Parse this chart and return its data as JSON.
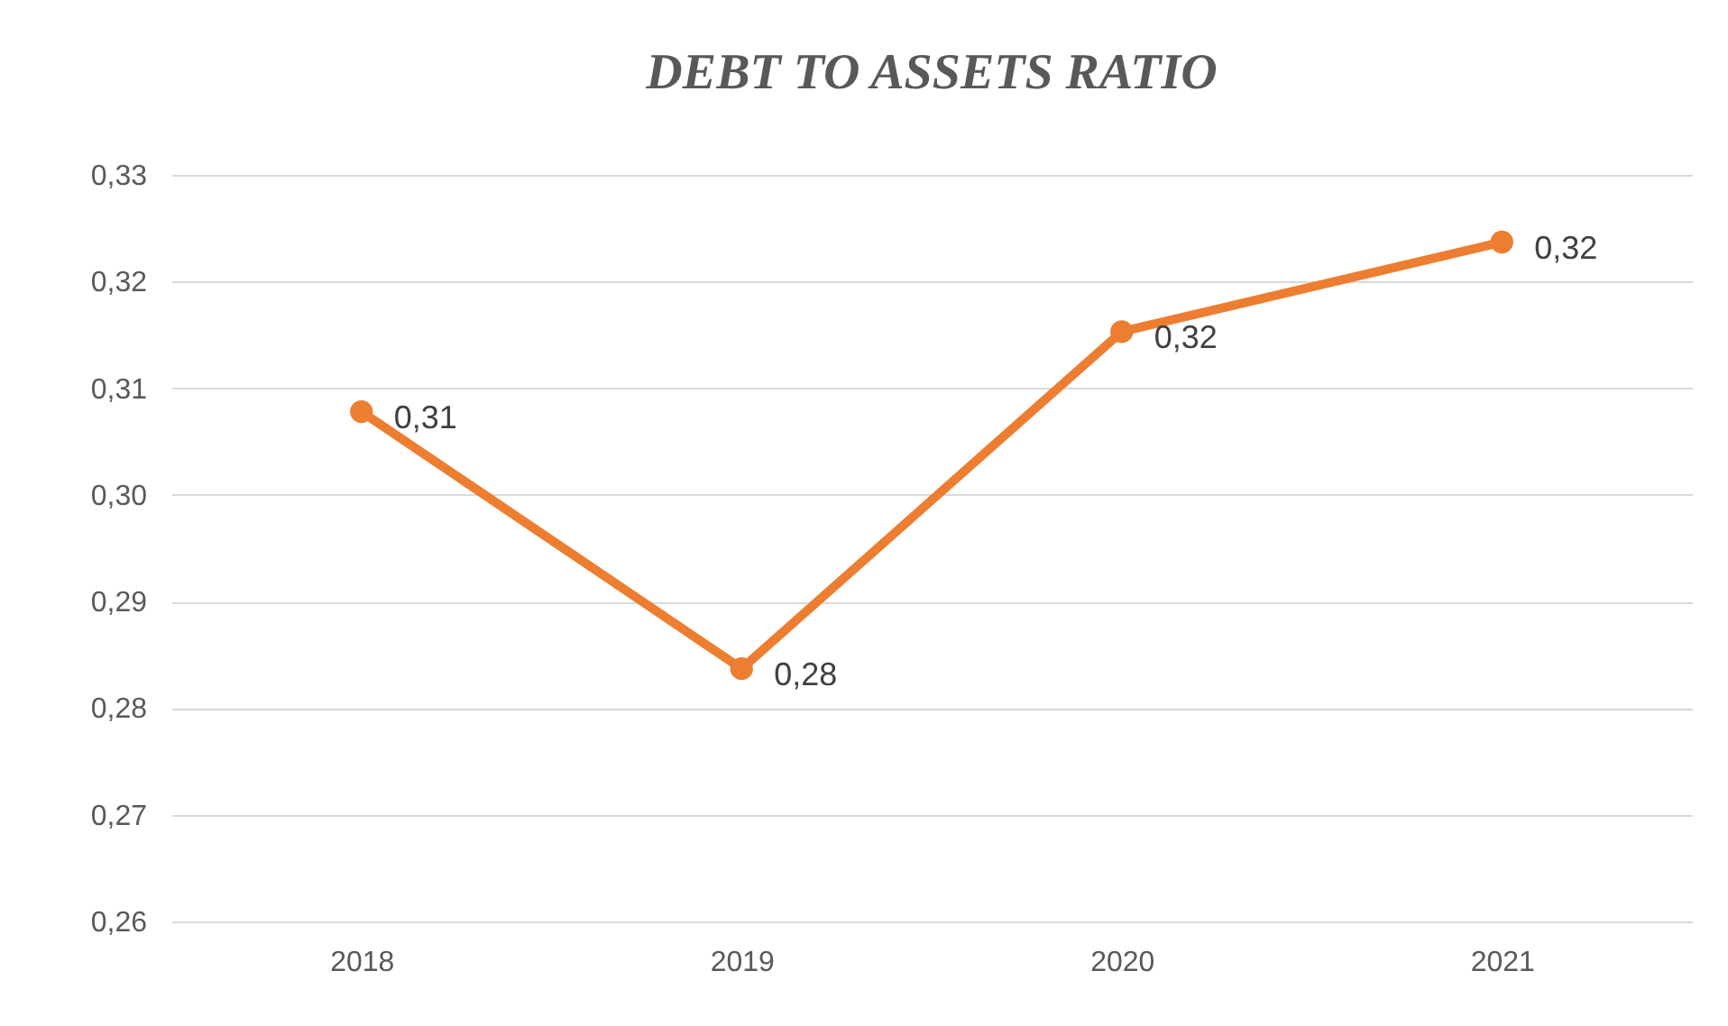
{
  "chart_data": {
    "type": "line",
    "title": "DEBT TO ASSETS RATIO",
    "categories": [
      "2018",
      "2019",
      "2020",
      "2021"
    ],
    "series": [
      {
        "color": "#ed7d31",
        "values": [
          0.3078,
          0.2837,
          0.3153,
          0.3237
        ],
        "value_labels": [
          "0,31",
          "0,28",
          "0,32",
          "0,32"
        ]
      }
    ],
    "ylim": [
      0.26,
      0.33
    ],
    "yticks": [
      {
        "value": 0.26,
        "label": "0,26"
      },
      {
        "value": 0.27,
        "label": "0,27"
      },
      {
        "value": 0.28,
        "label": "0,28"
      },
      {
        "value": 0.29,
        "label": "0,29"
      },
      {
        "value": 0.3,
        "label": "0,30"
      },
      {
        "value": 0.31,
        "label": "0,31"
      },
      {
        "value": 0.32,
        "label": "0,32"
      },
      {
        "value": 0.33,
        "label": "0,33"
      }
    ],
    "grid": "y",
    "marker": "circle",
    "line_style": "solid"
  }
}
